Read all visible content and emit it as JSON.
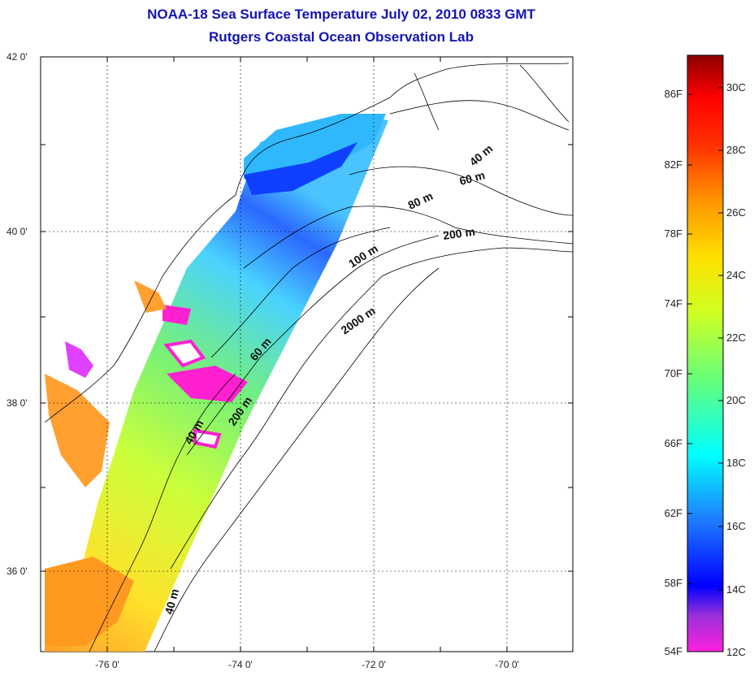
{
  "title": {
    "line1": "NOAA-18 Sea Surface Temperature July 02, 2010 0833 GMT",
    "line2": "Rutgers Coastal Ocean Observation Lab"
  },
  "map": {
    "lat_ticks": [
      "42 0'",
      "40 0'",
      "38 0'",
      "36 0'"
    ],
    "lon_ticks": [
      "-76 0'",
      "-74 0'",
      "-72 0'",
      "-70 0'"
    ],
    "isobaths": [
      "40 m",
      "60 m",
      "80 m",
      "200 m",
      "100 m",
      "2000 m",
      "60 m",
      "200 m",
      "40 m",
      "40 m"
    ]
  },
  "colorbar": {
    "fahrenheit_labels": [
      "86F",
      "82F",
      "78F",
      "74F",
      "70F",
      "66F",
      "62F",
      "58F",
      "54F"
    ],
    "celsius_labels": [
      "30C",
      "28C",
      "26C",
      "24C",
      "22C",
      "20C",
      "18C",
      "16C",
      "14C",
      "12C"
    ],
    "colors": {
      "top": "#8b0000",
      "red": "#ff0000",
      "orange": "#ff8c00",
      "yellow": "#ffff00",
      "green": "#7fff00",
      "cyan": "#00ffff",
      "blue": "#1e64ff",
      "dark_blue": "#0000ff",
      "purple": "#8a2be2",
      "magenta": "#ff00ff"
    }
  }
}
